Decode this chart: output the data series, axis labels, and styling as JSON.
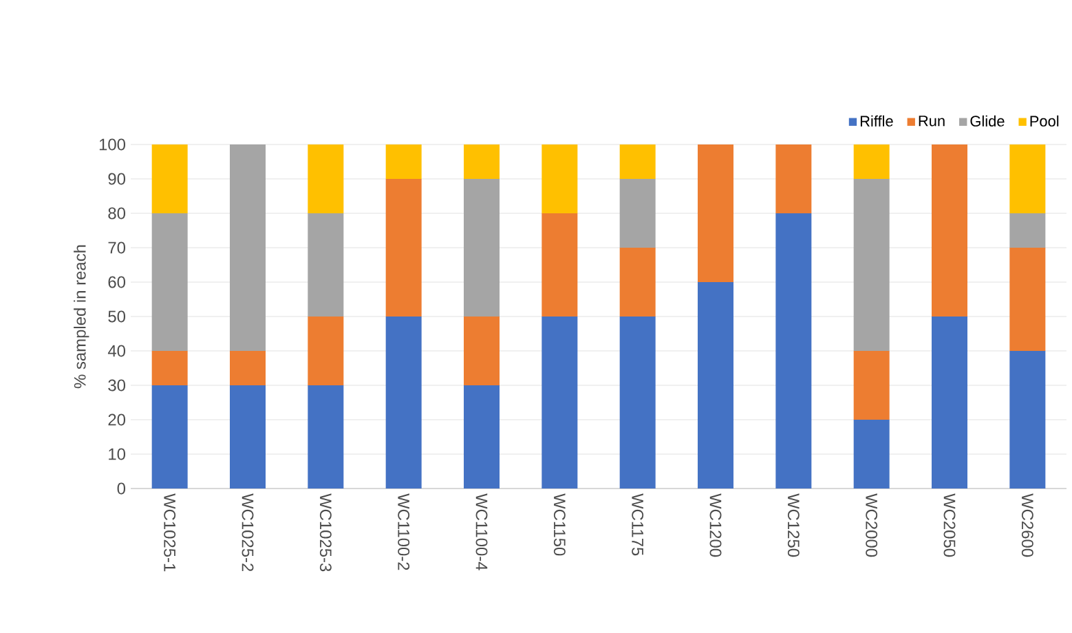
{
  "chart_data": {
    "type": "bar",
    "stacked": true,
    "ylabel": "% sampled in reach",
    "categories": [
      "WC1025-1",
      "WC1025-2",
      "WC1025-3",
      "WC1100-2",
      "WC1100-4",
      "WC1150",
      "WC1175",
      "WC1200",
      "WC1250",
      "WC2000",
      "WC2050",
      "WC2600"
    ],
    "series": [
      {
        "name": "Riffle",
        "color": "#4472c4",
        "values": [
          30,
          30,
          30,
          50,
          30,
          50,
          50,
          60,
          80,
          20,
          50,
          40
        ]
      },
      {
        "name": "Run",
        "color": "#ed7d31",
        "values": [
          10,
          10,
          20,
          40,
          20,
          30,
          20,
          40,
          20,
          20,
          50,
          30
        ]
      },
      {
        "name": "Glide",
        "color": "#a5a5a5",
        "values": [
          40,
          60,
          30,
          0,
          40,
          0,
          20,
          0,
          0,
          50,
          0,
          10
        ]
      },
      {
        "name": "Pool",
        "color": "#ffc000",
        "values": [
          20,
          0,
          20,
          10,
          10,
          20,
          10,
          0,
          0,
          10,
          0,
          20
        ]
      }
    ],
    "ylim": [
      0,
      100
    ],
    "yticks": [
      0,
      10,
      20,
      30,
      40,
      50,
      60,
      70,
      80,
      90,
      100
    ],
    "grid": "y",
    "legend": "top right"
  }
}
